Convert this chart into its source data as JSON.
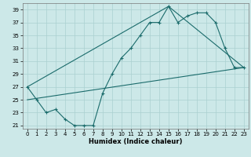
{
  "xlabel": "Humidex (Indice chaleur)",
  "bg_color": "#cce8e8",
  "grid_color": "#aad0d0",
  "line_color": "#1a6b6b",
  "xlim": [
    -0.5,
    23.5
  ],
  "ylim": [
    20.5,
    40.0
  ],
  "xticks": [
    0,
    1,
    2,
    3,
    4,
    5,
    6,
    7,
    8,
    9,
    10,
    11,
    12,
    13,
    14,
    15,
    16,
    17,
    18,
    19,
    20,
    21,
    22,
    23
  ],
  "yticks": [
    21,
    23,
    25,
    27,
    29,
    31,
    33,
    35,
    37,
    39
  ],
  "line1_x": [
    0,
    1,
    2,
    3,
    4,
    5,
    6,
    7,
    8,
    9,
    10,
    11,
    12,
    13,
    14,
    15,
    16,
    17,
    18,
    19,
    20,
    21,
    22,
    23
  ],
  "line1_y": [
    27,
    25,
    23,
    23.5,
    22,
    21,
    21,
    21,
    26,
    29,
    31.5,
    33,
    35,
    37,
    37,
    39.5,
    37,
    38,
    38.5,
    38.5,
    37,
    33,
    30,
    30
  ],
  "line2_x": [
    0,
    23
  ],
  "line2_y": [
    25,
    30
  ],
  "line3_x": [
    0,
    15,
    23
  ],
  "line3_y": [
    27,
    39.5,
    30
  ]
}
